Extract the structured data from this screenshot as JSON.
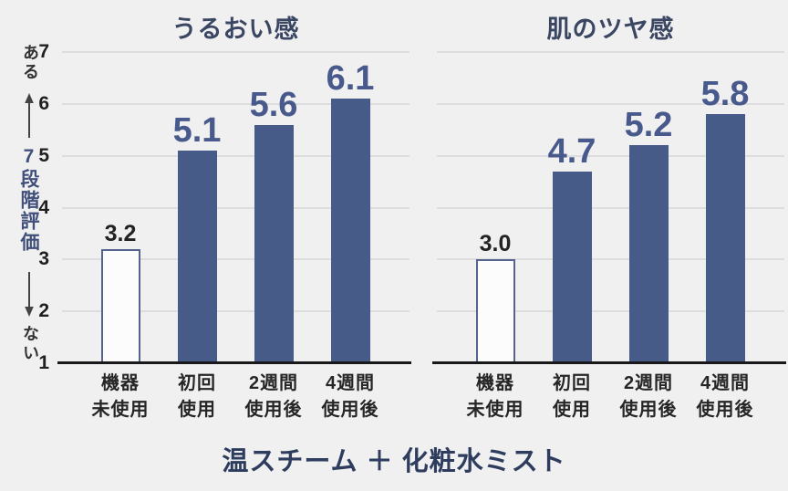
{
  "page": {
    "background": "#f0f0f1"
  },
  "footer_title": "温スチーム ＋ 化粧水ミスト",
  "y_axis": {
    "top_label": "ある",
    "bottom_label": "ない",
    "scale_label": "7段階評価",
    "ticks": [
      7,
      6,
      5,
      4,
      3,
      2,
      1
    ],
    "min": 1,
    "max": 7
  },
  "colors": {
    "background": "#f0f0f1",
    "bar_fill": "#475b88",
    "bar_outline_border": "#54648f",
    "bar_outline_fill": "#fcfcfd",
    "gridline": "#dddde0",
    "baseline": "#19191b",
    "value_navy": "#48598c",
    "value_dark": "#222222",
    "title_navy": "#3a4662",
    "footer_navy": "#2e3c5e"
  },
  "chart_data": [
    {
      "type": "bar",
      "title": "うるおい感",
      "categories": [
        "機器\n未使用",
        "初回\n使用",
        "2週間\n使用後",
        "4週間\n使用後"
      ],
      "values": [
        3.2,
        5.1,
        5.6,
        6.1
      ],
      "value_labels": [
        "3.2",
        "5.1",
        "5.6",
        "6.1"
      ],
      "value_label_styles": [
        "dark",
        "navy",
        "navy",
        "navy"
      ],
      "bar_styles": [
        "outline",
        "fill",
        "fill",
        "fill"
      ],
      "ylabel": "7段階評価",
      "ylim": [
        1,
        7
      ],
      "grid": true,
      "legend": "none"
    },
    {
      "type": "bar",
      "title": "肌のツヤ感",
      "categories": [
        "機器\n未使用",
        "初回\n使用",
        "2週間\n使用後",
        "4週間\n使用後"
      ],
      "values": [
        3.0,
        4.7,
        5.2,
        5.8
      ],
      "value_labels": [
        "3.0",
        "4.7",
        "5.2",
        "5.8"
      ],
      "value_label_styles": [
        "dark",
        "navy",
        "navy",
        "navy"
      ],
      "bar_styles": [
        "outline",
        "fill",
        "fill",
        "fill"
      ],
      "ylabel": "7段階評価",
      "ylim": [
        1,
        7
      ],
      "grid": true,
      "legend": "none"
    }
  ]
}
